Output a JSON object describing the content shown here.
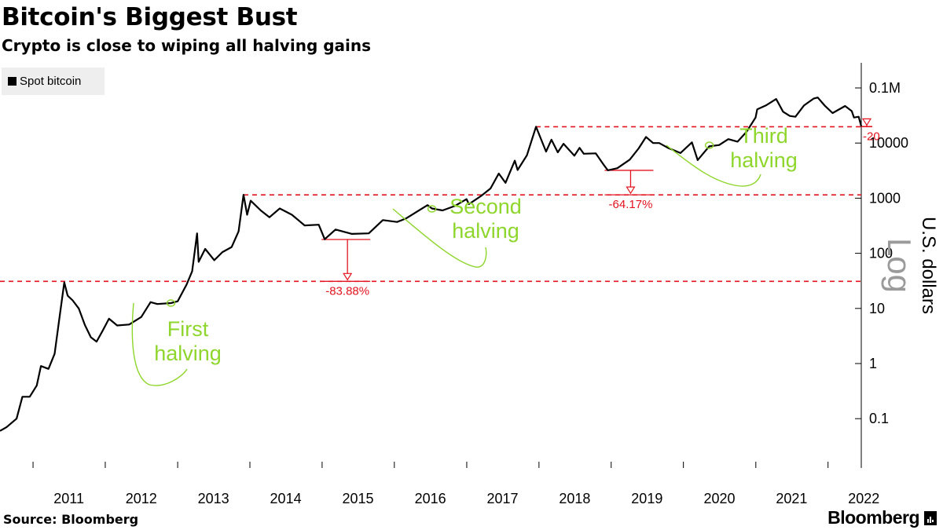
{
  "header": {
    "title": "Bitcoin's Biggest Bust",
    "subtitle": "Crypto is close to wiping all halving gains"
  },
  "legend": {
    "label": "Spot bitcoin",
    "color": "#000000"
  },
  "footer": {
    "source": "Source: Bloomberg",
    "brand": "Bloomberg"
  },
  "colors": {
    "series": "#000000",
    "reference": "#e3141f",
    "halving": "#8ed62c",
    "axis": "#000000"
  },
  "chart_data": {
    "type": "line",
    "title": "Bitcoin's Biggest Bust",
    "subtitle": "Crypto is close to wiping all halving gains",
    "ylabel": "U.S. dollars",
    "yscale_label": "Log",
    "yscale": "log",
    "y_ticks": [
      {
        "value": 0.1,
        "label": "0.1"
      },
      {
        "value": 1,
        "label": "1"
      },
      {
        "value": 10,
        "label": "10"
      },
      {
        "value": 100,
        "label": "100"
      },
      {
        "value": 1000,
        "label": "1000"
      },
      {
        "value": 10000,
        "label": "10000"
      },
      {
        "value": 100000,
        "label": "0.1M"
      }
    ],
    "ylim": [
      0.025,
      150000
    ],
    "xlim": [
      "2010-07-18",
      "2022-06-18"
    ],
    "x_ticks": [
      "2011",
      "2012",
      "2013",
      "2014",
      "2015",
      "2016",
      "2017",
      "2018",
      "2019",
      "2020",
      "2021",
      "2022"
    ],
    "legend_position": "top-left",
    "grid": false,
    "series": [
      {
        "name": "Spot bitcoin",
        "x": [
          "2010-07-18",
          "2010-08-20",
          "2010-10-10",
          "2010-11-08",
          "2010-12-15",
          "2011-01-20",
          "2011-02-10",
          "2011-03-20",
          "2011-04-20",
          "2011-05-15",
          "2011-06-08",
          "2011-06-25",
          "2011-07-20",
          "2011-08-20",
          "2011-09-20",
          "2011-10-20",
          "2011-11-18",
          "2011-12-20",
          "2012-01-20",
          "2012-03-01",
          "2012-05-01",
          "2012-07-01",
          "2012-08-17",
          "2012-09-20",
          "2012-11-28",
          "2013-01-01",
          "2013-02-15",
          "2013-03-15",
          "2013-04-09",
          "2013-04-17",
          "2013-05-20",
          "2013-07-05",
          "2013-08-15",
          "2013-10-01",
          "2013-11-05",
          "2013-11-30",
          "2013-12-18",
          "2014-01-05",
          "2014-02-25",
          "2014-04-10",
          "2014-06-01",
          "2014-08-01",
          "2014-10-05",
          "2014-12-15",
          "2015-01-14",
          "2015-03-10",
          "2015-06-01",
          "2015-08-25",
          "2015-11-04",
          "2016-01-15",
          "2016-03-01",
          "2016-06-17",
          "2016-07-09",
          "2016-09-01",
          "2016-11-01",
          "2016-12-31",
          "2017-01-12",
          "2017-03-15",
          "2017-05-01",
          "2017-06-12",
          "2017-07-16",
          "2017-09-01",
          "2017-09-15",
          "2017-11-01",
          "2017-12-17",
          "2018-02-06",
          "2018-03-05",
          "2018-04-06",
          "2018-05-05",
          "2018-06-29",
          "2018-07-25",
          "2018-08-15",
          "2018-10-15",
          "2018-11-25",
          "2018-12-15",
          "2019-02-01",
          "2019-04-05",
          "2019-05-20",
          "2019-06-26",
          "2019-08-01",
          "2019-09-01",
          "2019-10-15",
          "2019-12-17",
          "2020-02-13",
          "2020-03-13",
          "2020-04-20",
          "2020-05-11",
          "2020-06-30",
          "2020-08-15",
          "2020-10-01",
          "2020-11-15",
          "2020-12-31",
          "2021-01-08",
          "2021-02-20",
          "2021-04-14",
          "2021-05-19",
          "2021-06-22",
          "2021-07-20",
          "2021-09-01",
          "2021-10-20",
          "2021-11-10",
          "2021-12-15",
          "2022-01-24",
          "2022-03-28",
          "2022-05-01",
          "2022-05-12",
          "2022-06-05",
          "2022-06-18"
        ],
        "values": [
          0.06,
          0.07,
          0.1,
          0.25,
          0.25,
          0.4,
          0.9,
          0.8,
          1.5,
          7,
          29.6,
          17,
          14,
          10,
          5,
          3,
          2.5,
          4,
          6.5,
          4.9,
          5.1,
          7,
          13,
          12,
          12.5,
          13.5,
          27,
          47,
          230,
          70,
          120,
          75,
          105,
          130,
          250,
          1150,
          500,
          900,
          600,
          450,
          650,
          500,
          320,
          330,
          180,
          270,
          225,
          230,
          400,
          370,
          430,
          750,
          650,
          600,
          720,
          960,
          780,
          1100,
          1500,
          2800,
          1900,
          4800,
          3250,
          6000,
          19783,
          7000,
          11500,
          6800,
          9700,
          5900,
          8200,
          6400,
          6500,
          4000,
          3200,
          3500,
          5000,
          8000,
          12900,
          10000,
          10000,
          8200,
          6600,
          10300,
          4900,
          7100,
          8700,
          9200,
          11800,
          10600,
          16000,
          29000,
          41000,
          48000,
          63000,
          37000,
          31000,
          30000,
          48000,
          64000,
          67000,
          48000,
          35000,
          47000,
          38000,
          29000,
          30000,
          20200
        ]
      }
    ],
    "reference_lines": [
      {
        "value": 31,
        "label": "-83.88%",
        "from_value": 31,
        "to_value": 178
      },
      {
        "value": 1150,
        "label": "-64.17%",
        "from_value": 1150,
        "to_value": 3200
      },
      {
        "value": 19783,
        "label": "-20",
        "from_value": 19783,
        "to_value": 20000
      }
    ],
    "annotations": [
      {
        "text": "First\nhalving",
        "date": "2012-11-28"
      },
      {
        "text": "Second\nhalving",
        "date": "2016-07-09"
      },
      {
        "text": "Third\nhalving",
        "date": "2020-05-11"
      }
    ]
  }
}
